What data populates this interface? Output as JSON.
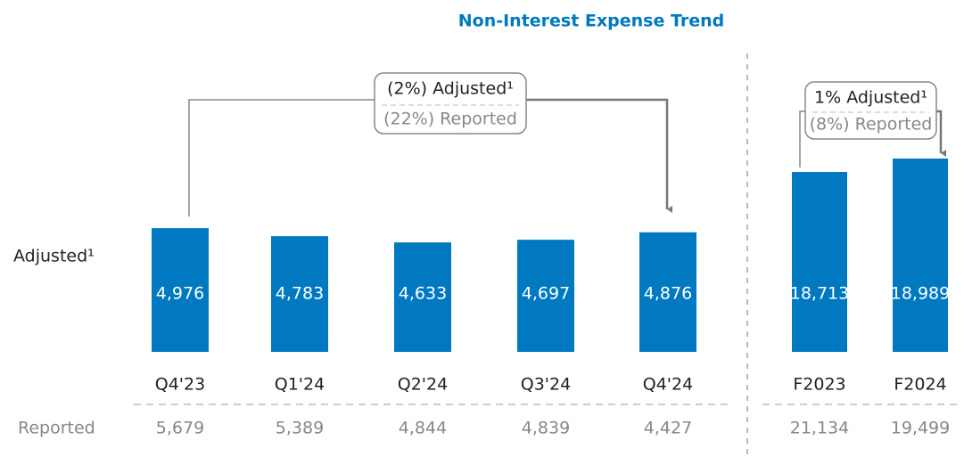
{
  "title": "Non-Interest Expense Trend",
  "row_labels": {
    "adjusted": "Adjusted¹",
    "reported": "Reported"
  },
  "chart_data": [
    {
      "type": "bar",
      "color": "#0079c1",
      "categories": [
        "Q4'23",
        "Q1'24",
        "Q2'24",
        "Q3'24",
        "Q4'24"
      ],
      "values": [
        4976,
        4783,
        4633,
        4697,
        4876
      ],
      "value_labels": [
        "4,976",
        "4,783",
        "4,633",
        "4,697",
        "4,876"
      ],
      "ylim": [
        2000,
        8000
      ],
      "reported_labels": [
        "5,679",
        "5,389",
        "4,844",
        "4,839",
        "4,427"
      ],
      "annotation": {
        "adjusted": "(2%)  Adjusted¹",
        "reported": "(22%) Reported"
      }
    },
    {
      "type": "bar",
      "color": "#0079c1",
      "categories": [
        "F2023",
        "F2024"
      ],
      "values": [
        18713,
        18989
      ],
      "value_labels": [
        "18,713",
        "18,989"
      ],
      "ylim": [
        15000,
        20000
      ],
      "reported_labels": [
        "21,134",
        "19,499"
      ],
      "annotation": {
        "adjusted": "1% Adjusted¹",
        "reported": "(8%) Reported"
      }
    }
  ]
}
